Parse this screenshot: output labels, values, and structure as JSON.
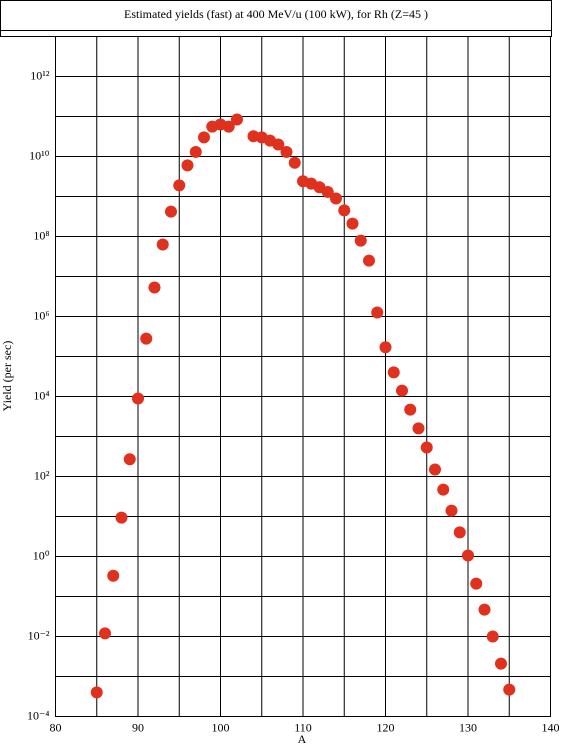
{
  "chart_data": {
    "type": "scatter",
    "title": "Estimated yields (fast) at 400 MeV/u (100 kW), for Rh (Z=45 )",
    "xlabel": "A",
    "ylabel": "Yield (per sec)",
    "x": [
      85,
      86,
      87,
      88,
      89,
      90,
      91,
      92,
      93,
      94,
      95,
      96,
      97,
      98,
      99,
      100,
      101,
      102,
      104,
      105,
      106,
      107,
      108,
      109,
      110,
      111,
      112,
      113,
      114,
      115,
      116,
      117,
      118,
      119,
      120,
      121,
      122,
      123,
      124,
      125,
      126,
      127,
      128,
      129,
      130,
      131,
      132,
      133,
      134,
      135
    ],
    "values": [
      0.0004,
      0.012,
      0.33,
      9.4,
      270,
      8900,
      280000,
      5300000,
      63000000,
      420000000,
      1900000000,
      6000000000,
      13000000000,
      30000000000,
      56000000000,
      63000000000,
      56000000000,
      84000000000,
      32000000000,
      30000000000,
      25000000000,
      20000000000,
      13000000000,
      7000000000,
      2400000000,
      2100000000,
      1700000000,
      1300000000,
      890000000,
      450000000,
      210000000,
      79000000,
      25000000,
      1260000,
      170000,
      40000,
      14000,
      4700,
      1600,
      530,
      150,
      47,
      14,
      4,
      1.06,
      0.21,
      0.047,
      0.01,
      0.0021,
      0.00047
    ],
    "color": "#e0301e",
    "xlim": [
      80,
      140
    ],
    "xticks": [
      80,
      90,
      100,
      110,
      120,
      130,
      140
    ],
    "xminorticks": [
      85,
      95,
      105,
      115,
      125,
      135
    ],
    "ylim": [
      0.0001,
      10000000000000
    ],
    "ylog": true,
    "yticks": [
      {
        "value": 0.0001,
        "label": "10⁻⁴"
      },
      {
        "value": 0.01,
        "label": "10⁻²"
      },
      {
        "value": 1,
        "label": "10⁰"
      },
      {
        "value": 100,
        "label": "10²"
      },
      {
        "value": 10000,
        "label": "10⁴"
      },
      {
        "value": 1000000,
        "label": "10⁶"
      },
      {
        "value": 100000000,
        "label": "10⁸"
      },
      {
        "value": 10000000000,
        "label": "10¹⁰"
      },
      {
        "value": 1000000000000,
        "label": "10¹²"
      }
    ],
    "yminorticks": [
      0.001,
      0.1,
      10,
      1000,
      100000,
      10000000,
      1000000000,
      100000000000,
      10000000000000
    ],
    "grid": true
  }
}
